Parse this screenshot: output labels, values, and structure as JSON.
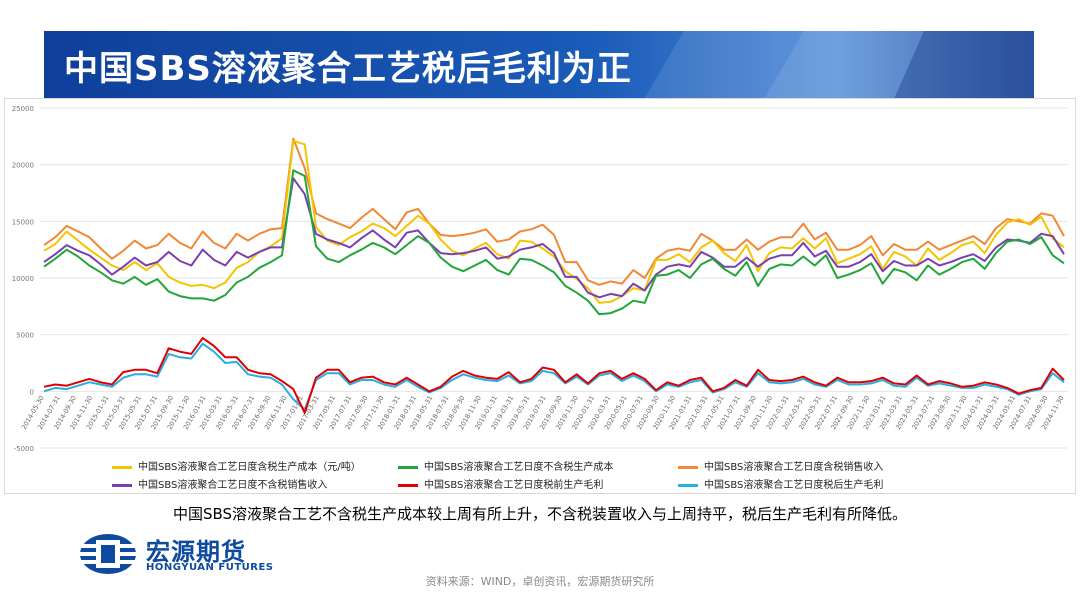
{
  "header": {
    "title": "中国SBS溶液聚合工艺税后毛利为正"
  },
  "note": "中国SBS溶液聚合工艺不含税生产成本较上周有所上升，不含税装置收入与上周持平，税后生产毛利有所降低。",
  "source": "资料来源：WIND，卓创资讯，宏源期货研究所",
  "logo": {
    "cn": "宏源期货",
    "en": "HONGYUAN FUTURES"
  },
  "colors": {
    "title_band": "#1a5bb8",
    "yellow": "#f5c400",
    "green": "#22a639",
    "orange": "#f08838",
    "purple": "#7a3fb0",
    "red": "#e00000",
    "cyan": "#27aee3"
  },
  "chart_data": {
    "type": "line",
    "ylim": [
      -5000,
      25000
    ],
    "yticks": [
      "25000",
      "20000",
      "15000",
      "10000",
      "5000",
      "0",
      "-5000"
    ],
    "xticks": [
      "2014-05-30",
      "2014-07-31",
      "2014-09-30",
      "2014-11-30",
      "2015-01-31",
      "2015-03-31",
      "2015-05-31",
      "2015-07-31",
      "2015-09-30",
      "2015-11-30",
      "2016-01-31",
      "2016-03-31",
      "2016-05-31",
      "2016-07-31",
      "2016-09-30",
      "2016-11-30",
      "2017-01-31",
      "2017-03-31",
      "2017-05-31",
      "2017-07-31",
      "2017-09-30",
      "2017-11-30",
      "2018-01-31",
      "2018-03-31",
      "2018-05-31",
      "2018-07-31",
      "2018-09-30",
      "2018-11-30",
      "2019-01-31",
      "2019-03-31",
      "2019-05-31",
      "2019-07-31",
      "2019-09-30",
      "2019-11-30",
      "2020-01-31",
      "2020-03-31",
      "2020-05-31",
      "2020-07-31",
      "2020-09-30",
      "2020-11-30",
      "2021-01-31",
      "2021-03-31",
      "2021-05-31",
      "2021-07-31",
      "2021-09-30",
      "2021-11-30",
      "2022-01-31",
      "2022-03-31",
      "2022-05-31",
      "2022-07-31",
      "2022-09-30",
      "2022-11-30",
      "2023-01-31",
      "2023-03-31",
      "2023-05-31",
      "2023-07-31",
      "2023-09-30",
      "2023-11-30",
      "2024-01-31",
      "2024-03-31",
      "2024-05-31",
      "2024-07-31",
      "2024-09-30",
      "2024-11-30"
    ],
    "series": [
      {
        "name": "中国SBS溶液聚合工艺日度含税生产成本（元/吨）",
        "color": "#f5c400",
        "values": [
          12400,
          13000,
          14100,
          13300,
          12500,
          11800,
          11100,
          10700,
          11400,
          10700,
          11300,
          10100,
          9600,
          9300,
          9400,
          9100,
          9600,
          10900,
          11400,
          12300,
          12800,
          13500,
          22100,
          21800,
          14500,
          13300,
          12900,
          13600,
          14100,
          14800,
          14400,
          13700,
          14600,
          15500,
          14800,
          13400,
          12400,
          12000,
          12600,
          13100,
          12100,
          11700,
          13300,
          13200,
          12600,
          11900,
          10600,
          9900,
          9100,
          7800,
          7900,
          8400,
          9100,
          8900,
          11600,
          11600,
          12100,
          11400,
          12700,
          13300,
          12200,
          11500,
          12900,
          10600,
          12200,
          12700,
          12600,
          13500,
          12600,
          13500,
          11300,
          11700,
          12100,
          12800,
          10800,
          12300,
          11900,
          11100,
          12600,
          11600,
          12200,
          12900,
          13200,
          12200,
          13800,
          14900,
          15200,
          14700,
          15400,
          13500,
          12700
        ]
      },
      {
        "name": "中国SBS溶液聚合工艺日度不含税生产成本",
        "color": "#22a639",
        "values": [
          11000,
          11700,
          12500,
          11900,
          11100,
          10500,
          9800,
          9500,
          10100,
          9400,
          9900,
          8800,
          8400,
          8200,
          8200,
          8000,
          8500,
          9600,
          10100,
          10900,
          11400,
          12000,
          19500,
          19000,
          12800,
          11700,
          11400,
          12000,
          12500,
          13100,
          12700,
          12100,
          12900,
          13700,
          13100,
          11800,
          11000,
          10600,
          11100,
          11600,
          10700,
          10300,
          11700,
          11600,
          11100,
          10500,
          9300,
          8700,
          8000,
          6800,
          6900,
          7300,
          8000,
          7800,
          10200,
          10300,
          10700,
          10000,
          11200,
          11700,
          10800,
          10200,
          11400,
          9300,
          10800,
          11200,
          11100,
          11900,
          11100,
          12000,
          10000,
          10300,
          10700,
          11300,
          9500,
          10800,
          10500,
          9800,
          11100,
          10300,
          10800,
          11400,
          11700,
          10800,
          12200,
          13200,
          13400,
          13000,
          13600,
          12000,
          11300
        ]
      },
      {
        "name": "中国SBS溶液聚合工艺日度含税销售收入",
        "color": "#f08838",
        "values": [
          12900,
          13600,
          14600,
          14100,
          13600,
          12600,
          11700,
          12400,
          13300,
          12600,
          12900,
          13900,
          13100,
          12600,
          14100,
          13100,
          12600,
          13900,
          13300,
          13900,
          14300,
          14400,
          22300,
          19700,
          15700,
          15200,
          14800,
          14400,
          15300,
          16100,
          15200,
          14300,
          15800,
          16100,
          14800,
          13800,
          13700,
          13800,
          14000,
          14300,
          13200,
          13400,
          14100,
          14300,
          14700,
          13800,
          11400,
          11400,
          9800,
          9400,
          9700,
          9500,
          10700,
          10000,
          11700,
          12400,
          12600,
          12400,
          13900,
          13300,
          12500,
          12500,
          13400,
          12500,
          13200,
          13600,
          13600,
          14800,
          13400,
          14000,
          12500,
          12500,
          12900,
          13700,
          12000,
          13000,
          12500,
          12500,
          13200,
          12500,
          12900,
          13300,
          13700,
          13000,
          14400,
          15200,
          15000,
          14800,
          15700,
          15500,
          13700
        ]
      },
      {
        "name": "中国SBS溶液聚合工艺日度不含税销售收入",
        "color": "#7a3fb0",
        "values": [
          11400,
          12100,
          12900,
          12400,
          12000,
          11200,
          10300,
          11000,
          11800,
          11100,
          11400,
          12300,
          11500,
          11100,
          12500,
          11600,
          11100,
          12300,
          11800,
          12300,
          12700,
          12700,
          18800,
          17400,
          13900,
          13400,
          13100,
          12700,
          13500,
          14200,
          13400,
          12700,
          14000,
          14200,
          13100,
          12200,
          12100,
          12200,
          12400,
          12700,
          11700,
          11900,
          12500,
          12700,
          13000,
          12200,
          10100,
          10100,
          8700,
          8300,
          8600,
          8400,
          9500,
          8900,
          10300,
          11000,
          11200,
          11000,
          12300,
          11800,
          11000,
          11000,
          11800,
          11000,
          11700,
          12000,
          12000,
          13100,
          11900,
          12400,
          11000,
          11000,
          11400,
          12100,
          10600,
          11500,
          11100,
          11100,
          11700,
          11100,
          11400,
          11800,
          12100,
          11500,
          12700,
          13400,
          13300,
          13100,
          13900,
          13700,
          12100
        ]
      },
      {
        "name": "中国SBS溶液聚合工艺日度税前生产毛利",
        "color": "#e00000",
        "values": [
          400,
          600,
          500,
          800,
          1100,
          800,
          600,
          1700,
          1900,
          1900,
          1600,
          3800,
          3500,
          3300,
          4700,
          4000,
          3000,
          3000,
          1900,
          1600,
          1500,
          900,
          200,
          -1900,
          1200,
          1900,
          1900,
          800,
          1200,
          1300,
          800,
          600,
          1200,
          600,
          0,
          400,
          1300,
          1800,
          1400,
          1200,
          1100,
          1700,
          800,
          1100,
          2100,
          1900,
          800,
          1500,
          700,
          1600,
          1800,
          1100,
          1600,
          1100,
          100,
          800,
          500,
          1000,
          1200,
          0,
          300,
          1000,
          500,
          1900,
          1000,
          900,
          1000,
          1300,
          800,
          500,
          1200,
          800,
          800,
          900,
          1200,
          700,
          600,
          1400,
          600,
          900,
          700,
          400,
          500,
          800,
          600,
          300,
          -200,
          100,
          300,
          2000,
          1000
        ]
      },
      {
        "name": "中国SBS溶液聚合工艺日度税后生产毛利",
        "color": "#27aee3",
        "values": [
          0,
          300,
          200,
          500,
          800,
          600,
          400,
          1200,
          1500,
          1500,
          1300,
          3300,
          3000,
          2900,
          4200,
          3500,
          2500,
          2600,
          1500,
          1300,
          1200,
          600,
          -700,
          -1600,
          1000,
          1600,
          1600,
          600,
          1000,
          1000,
          600,
          400,
          1000,
          400,
          -100,
          300,
          1000,
          1500,
          1200,
          1000,
          900,
          1400,
          700,
          900,
          1800,
          1600,
          700,
          1300,
          600,
          1400,
          1600,
          900,
          1400,
          900,
          0,
          600,
          400,
          800,
          1000,
          -100,
          200,
          800,
          400,
          1600,
          800,
          700,
          800,
          1100,
          600,
          400,
          1000,
          600,
          600,
          700,
          1000,
          500,
          400,
          1200,
          500,
          700,
          500,
          300,
          300,
          600,
          400,
          200,
          -300,
          0,
          200,
          1600,
          800
        ]
      }
    ]
  }
}
